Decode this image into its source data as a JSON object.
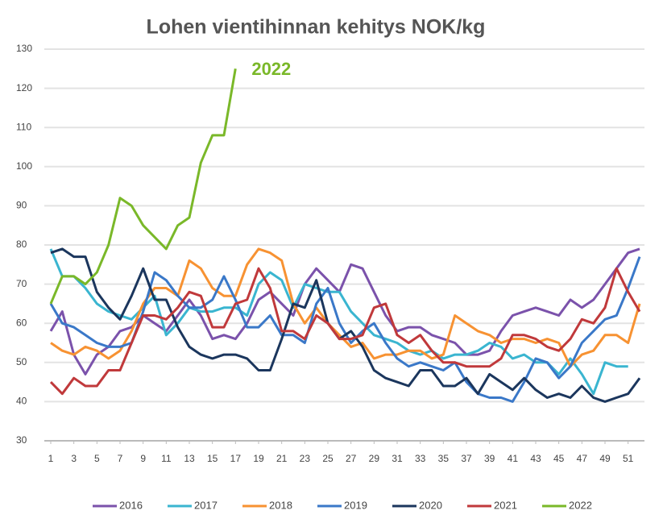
{
  "chart_data": {
    "type": "line",
    "title": "Lohen vientihinnan kehitys NOK/kg",
    "annotation": "2022",
    "x": [
      1,
      2,
      3,
      4,
      5,
      6,
      7,
      8,
      9,
      10,
      11,
      12,
      13,
      14,
      15,
      16,
      17,
      18,
      19,
      20,
      21,
      22,
      23,
      24,
      25,
      26,
      27,
      28,
      29,
      30,
      31,
      32,
      33,
      34,
      35,
      36,
      37,
      38,
      39,
      40,
      41,
      42,
      43,
      44,
      45,
      46,
      47,
      48,
      49,
      50,
      51,
      52
    ],
    "xlim": [
      1,
      52
    ],
    "xticks": [
      1,
      3,
      5,
      7,
      9,
      11,
      13,
      15,
      17,
      19,
      21,
      23,
      25,
      27,
      29,
      31,
      33,
      35,
      37,
      39,
      41,
      43,
      45,
      47,
      49,
      51
    ],
    "ylim": [
      30,
      130
    ],
    "yticks": [
      30,
      40,
      50,
      60,
      70,
      80,
      90,
      100,
      110,
      120,
      130
    ],
    "grid": true,
    "legend": "bottom",
    "series": [
      {
        "name": "2016",
        "color": "#7b52ab",
        "values": [
          58,
          63,
          52,
          47,
          52,
          54,
          58,
          59,
          62,
          60,
          58,
          62,
          66,
          62,
          56,
          57,
          56,
          60,
          66,
          68,
          65,
          62,
          70,
          74,
          71,
          68,
          75,
          74,
          68,
          62,
          58,
          59,
          59,
          57,
          56,
          55,
          52,
          52,
          53,
          58,
          62,
          63,
          64,
          63,
          62,
          66,
          64,
          66,
          70,
          74,
          78,
          79
        ]
      },
      {
        "name": "2017",
        "color": "#3ab5d0",
        "values": [
          79,
          72,
          72,
          69,
          65,
          63,
          62,
          61,
          64,
          67,
          57,
          60,
          64,
          63,
          63,
          64,
          64,
          62,
          70,
          73,
          71,
          64,
          70,
          69,
          68,
          68,
          63,
          60,
          57,
          56,
          55,
          53,
          52,
          53,
          51,
          52,
          52,
          53,
          55,
          54,
          51,
          52,
          50,
          50,
          47,
          51,
          47,
          42,
          50,
          49,
          49,
          null
        ]
      },
      {
        "name": "2018",
        "color": "#f79232",
        "values": [
          55,
          53,
          52,
          54,
          53,
          51,
          53,
          58,
          65,
          69,
          69,
          67,
          76,
          74,
          69,
          67,
          67,
          75,
          79,
          78,
          76,
          65,
          60,
          64,
          60,
          57,
          54,
          55,
          51,
          52,
          52,
          53,
          53,
          51,
          52,
          62,
          60,
          58,
          57,
          55,
          56,
          56,
          55,
          56,
          55,
          49,
          52,
          53,
          57,
          57,
          55,
          65
        ]
      },
      {
        "name": "2019",
        "color": "#3a78c8",
        "values": [
          65,
          60,
          59,
          57,
          55,
          54,
          54,
          55,
          63,
          73,
          71,
          67,
          64,
          64,
          66,
          72,
          66,
          59,
          59,
          62,
          57,
          57,
          55,
          65,
          69,
          60,
          55,
          58,
          60,
          55,
          51,
          49,
          50,
          49,
          48,
          50,
          45,
          42,
          41,
          41,
          40,
          45,
          51,
          50,
          46,
          49,
          55,
          58,
          61,
          62,
          69,
          77
        ]
      },
      {
        "name": "2020",
        "color": "#1b365d",
        "values": [
          78,
          79,
          77,
          77,
          68,
          64,
          61,
          67,
          74,
          66,
          66,
          59,
          54,
          52,
          51,
          52,
          52,
          51,
          48,
          48,
          56,
          65,
          64,
          71,
          60,
          56,
          58,
          54,
          48,
          46,
          45,
          44,
          48,
          48,
          44,
          44,
          46,
          42,
          47,
          45,
          43,
          46,
          43,
          41,
          42,
          41,
          44,
          41,
          40,
          41,
          42,
          46
        ]
      },
      {
        "name": "2021",
        "color": "#c0393b",
        "values": [
          45,
          42,
          46,
          44,
          44,
          48,
          48,
          55,
          62,
          62,
          61,
          64,
          68,
          67,
          59,
          59,
          65,
          66,
          74,
          69,
          58,
          58,
          56,
          62,
          60,
          56,
          56,
          57,
          64,
          65,
          57,
          55,
          57,
          53,
          50,
          50,
          49,
          49,
          49,
          51,
          57,
          57,
          56,
          54,
          53,
          56,
          61,
          60,
          64,
          74,
          68,
          63
        ]
      },
      {
        "name": "2022",
        "color": "#7ab829",
        "values": [
          65,
          72,
          72,
          70,
          73,
          80,
          92,
          90,
          85,
          82,
          79,
          85,
          87,
          101,
          108,
          108,
          125,
          null,
          null,
          null,
          null,
          null,
          null,
          null,
          null,
          null,
          null,
          null,
          null,
          null,
          null,
          null,
          null,
          null,
          null,
          null,
          null,
          null,
          null,
          null,
          null,
          null,
          null,
          null,
          null,
          null,
          null,
          null,
          null,
          null,
          null,
          null
        ]
      }
    ]
  }
}
